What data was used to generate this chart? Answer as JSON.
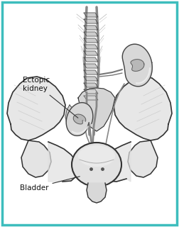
{
  "border_color": "#3dbdbd",
  "border_linewidth": 2.5,
  "bg_color": "#ffffff",
  "label_ectopic": "Ectopic\nkidney",
  "label_bladder": "Bladder",
  "label_fontsize": 7.5,
  "label_color": "#111111",
  "line_color": "#333333",
  "sketch_color": "#555555",
  "bone_fill": "#e8e8e8",
  "bone_edge": "#333333",
  "kidney_fill": "#d5d5d5",
  "kidney_edge": "#444444",
  "bladder_fill": "#e0e0e0",
  "vessel_color": "#666666"
}
